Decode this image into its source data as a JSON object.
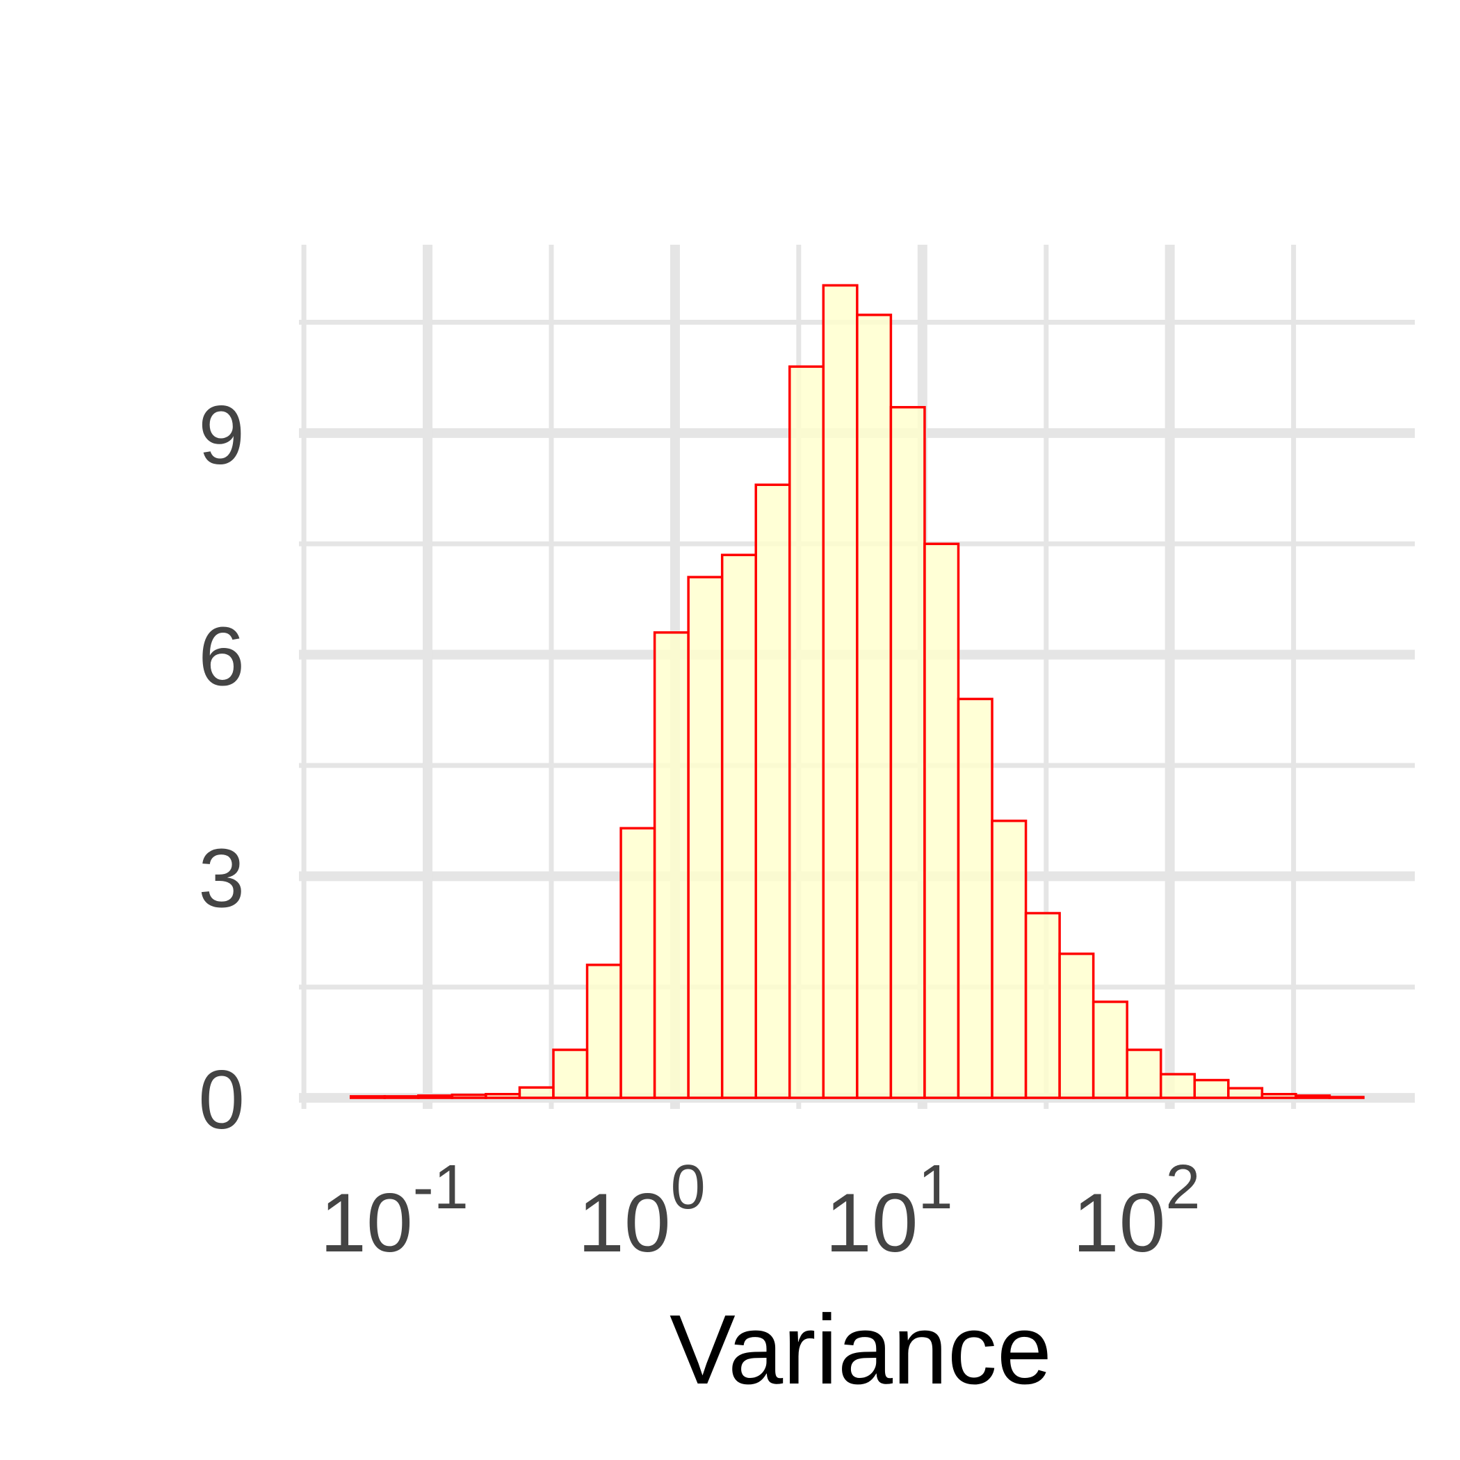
{
  "chart_data": {
    "type": "bar",
    "title": "",
    "xlabel": "Variance",
    "ylabel": "",
    "x_scale": "log10",
    "x_tick_labels": [
      {
        "base": "10",
        "exp": "-1",
        "value": 0.1
      },
      {
        "base": "10",
        "exp": "0",
        "value": 1
      },
      {
        "base": "10",
        "exp": "1",
        "value": 10
      },
      {
        "base": "10",
        "exp": "2",
        "value": 100
      }
    ],
    "y_ticks": [
      "0",
      "3",
      "6",
      "9"
    ],
    "y_tick_values": [
      0,
      3,
      6,
      9
    ],
    "ylim": [
      -0.15,
      11.55
    ],
    "xlim_log10": [
      -1.52,
      2.99
    ],
    "grid": true,
    "legend": "none",
    "bin_log10_start": -1.31,
    "bin_log10_width": 0.1364,
    "values": [
      0.02,
      0.02,
      0.03,
      0.04,
      0.05,
      0.14,
      0.65,
      1.8,
      3.65,
      6.3,
      7.05,
      7.35,
      8.3,
      9.9,
      11.0,
      10.6,
      9.35,
      7.5,
      5.4,
      3.75,
      2.5,
      1.95,
      1.3,
      0.65,
      0.32,
      0.24,
      0.13,
      0.05,
      0.03,
      0.01
    ],
    "colors": {
      "bar_fill": "#ffffcc",
      "bar_stroke": "#ff0000",
      "grid": "#e5e5e5",
      "tick_text": "#444444",
      "title_text": "#000000"
    }
  }
}
